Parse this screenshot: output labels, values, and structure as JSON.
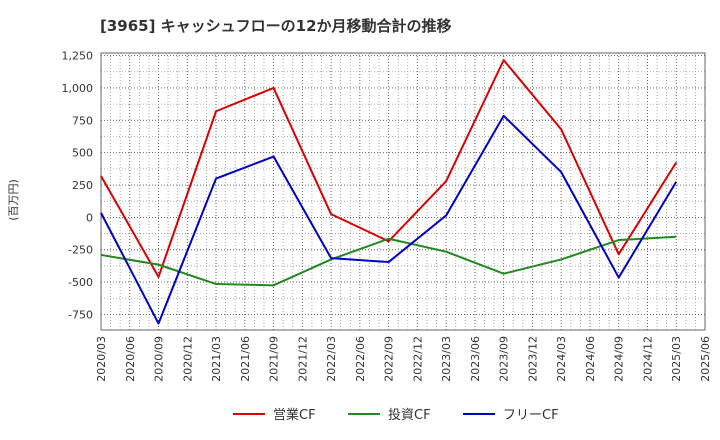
{
  "chart_data": {
    "type": "line",
    "title": "[3965]  キャッシュフローの12か月移動合計の推移",
    "ylabel": "(百万円)",
    "xlabel": "",
    "ylim": [
      -870,
      1270
    ],
    "yticks": [
      1250,
      1000,
      750,
      500,
      250,
      0,
      -250,
      -500,
      -750
    ],
    "ytick_labels": [
      "1,250",
      "1,000",
      "750",
      "500",
      "250",
      "0",
      "-250",
      "-500",
      "-750"
    ],
    "xtick_labels": [
      "2020/03",
      "2020/06",
      "2020/09",
      "2020/12",
      "2021/03",
      "2021/06",
      "2021/09",
      "2021/12",
      "2022/03",
      "2022/06",
      "2022/09",
      "2022/12",
      "2023/03",
      "2023/06",
      "2023/09",
      "2023/12",
      "2024/03",
      "2024/06",
      "2024/09",
      "2024/12",
      "2025/03",
      "2025/06"
    ],
    "grid": true,
    "legend_position": "bottom",
    "series": [
      {
        "name": "営業CF",
        "color": "#dd0000",
        "x": [
          "2020/03",
          "2020/09",
          "2021/03",
          "2021/09",
          "2022/03",
          "2022/09",
          "2023/03",
          "2023/09",
          "2024/03",
          "2024/09",
          "2025/03"
        ],
        "values": [
          320,
          -460,
          820,
          1000,
          25,
          -185,
          280,
          1215,
          680,
          -285,
          425
        ]
      },
      {
        "name": "投資CF",
        "color": "#228822",
        "x": [
          "2020/03",
          "2020/09",
          "2021/03",
          "2021/09",
          "2022/03",
          "2022/09",
          "2023/03",
          "2023/09",
          "2024/03",
          "2024/09",
          "2025/03"
        ],
        "values": [
          -290,
          -365,
          -515,
          -525,
          -325,
          -165,
          -265,
          -435,
          -325,
          -175,
          -150
        ]
      },
      {
        "name": "フリーCF",
        "color": "#0000cc",
        "x": [
          "2020/03",
          "2020/09",
          "2021/03",
          "2021/09",
          "2022/03",
          "2022/09",
          "2023/03",
          "2023/09",
          "2024/03",
          "2024/09",
          "2025/03"
        ],
        "values": [
          35,
          -820,
          300,
          470,
          -315,
          -345,
          15,
          785,
          350,
          -465,
          275
        ]
      }
    ]
  }
}
